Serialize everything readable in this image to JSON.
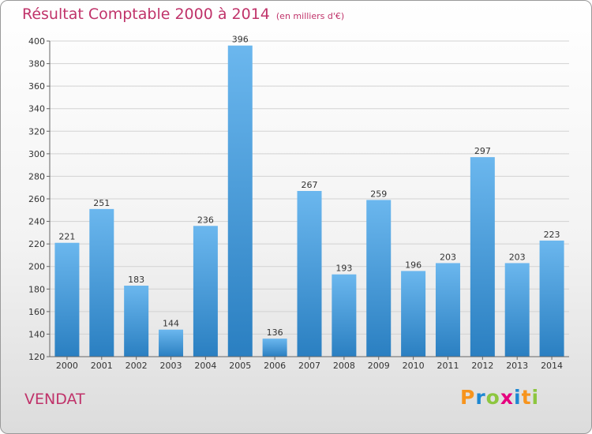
{
  "chart_data": {
    "type": "bar",
    "title": "Résultat Comptable 2000 à 2014",
    "subtitle": "(en milliers d'€)",
    "categories": [
      "2000",
      "2001",
      "2002",
      "2003",
      "2004",
      "2005",
      "2006",
      "2007",
      "2008",
      "2009",
      "2010",
      "2011",
      "2012",
      "2013",
      "2014"
    ],
    "values": [
      221,
      251,
      183,
      144,
      236,
      396,
      136,
      267,
      193,
      259,
      196,
      203,
      297,
      203,
      223
    ],
    "ylim": [
      120,
      400
    ],
    "yticks": [
      120,
      140,
      160,
      180,
      200,
      220,
      240,
      260,
      280,
      300,
      320,
      340,
      360,
      380,
      400
    ],
    "grid": true,
    "xlabel": "",
    "ylabel": ""
  },
  "place_name": "VENDAT",
  "logo": {
    "letters": [
      "P",
      "r",
      "o",
      "x",
      "i",
      "t",
      "i"
    ],
    "colors": [
      "#f7941d",
      "#1e88d2",
      "#8dc63f",
      "#e6007e",
      "#1e88d2",
      "#f7941d",
      "#8dc63f"
    ]
  },
  "colors": {
    "bar_top": "#6bb7ee",
    "bar_bottom": "#2a7fc1",
    "title": "#c0336a",
    "grid": "#d2d2d2"
  }
}
